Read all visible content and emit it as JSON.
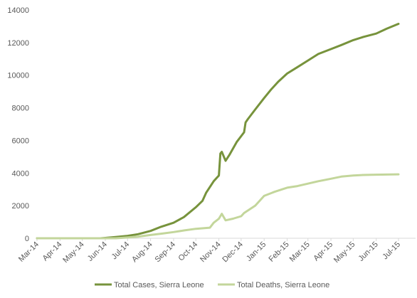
{
  "chart_data": {
    "type": "line",
    "title": "",
    "xlabel": "",
    "ylabel": "",
    "x_ticks": [
      "Mar-14",
      "Apr-14",
      "May-14",
      "Jun-14",
      "Jul-14",
      "Aug-14",
      "Sep-14",
      "Oct-14",
      "Nov-14",
      "Dec-14",
      "Jan-15",
      "Feb-15",
      "Mar-15",
      "Apr-15",
      "May-15",
      "Jun-15",
      "Jul-15"
    ],
    "y_ticks": [
      0,
      2000,
      4000,
      6000,
      8000,
      10000,
      12000,
      14000
    ],
    "ylim": [
      0,
      14000
    ],
    "xlim": [
      "2014-03-01",
      "2015-07-01"
    ],
    "grid": false,
    "legend_position": "bottom",
    "series": [
      {
        "name": "Total Cases, Sierra Leone",
        "color": "#77933c",
        "points": [
          [
            "2014-03-01",
            0
          ],
          [
            "2014-05-25",
            0
          ],
          [
            "2014-06-01",
            20
          ],
          [
            "2014-06-15",
            80
          ],
          [
            "2014-07-01",
            150
          ],
          [
            "2014-07-15",
            250
          ],
          [
            "2014-08-01",
            450
          ],
          [
            "2014-08-15",
            700
          ],
          [
            "2014-09-01",
            950
          ],
          [
            "2014-09-15",
            1300
          ],
          [
            "2014-10-01",
            1900
          ],
          [
            "2014-10-10",
            2300
          ],
          [
            "2014-10-15",
            2800
          ],
          [
            "2014-10-25",
            3500
          ],
          [
            "2014-11-01",
            3850
          ],
          [
            "2014-11-03",
            5200
          ],
          [
            "2014-11-05",
            5300
          ],
          [
            "2014-11-10",
            4750
          ],
          [
            "2014-11-15",
            5100
          ],
          [
            "2014-11-25",
            5900
          ],
          [
            "2014-12-05",
            6500
          ],
          [
            "2014-12-07",
            7100
          ],
          [
            "2014-12-10",
            7300
          ],
          [
            "2014-12-20",
            7900
          ],
          [
            "2015-01-01",
            8600
          ],
          [
            "2015-01-10",
            9100
          ],
          [
            "2015-01-20",
            9600
          ],
          [
            "2015-02-01",
            10100
          ],
          [
            "2015-02-15",
            10500
          ],
          [
            "2015-03-01",
            10900
          ],
          [
            "2015-03-15",
            11300
          ],
          [
            "2015-04-01",
            11600
          ],
          [
            "2015-04-15",
            11850
          ],
          [
            "2015-05-01",
            12150
          ],
          [
            "2015-05-15",
            12350
          ],
          [
            "2015-06-01",
            12550
          ],
          [
            "2015-06-15",
            12850
          ],
          [
            "2015-07-01",
            13150
          ]
        ]
      },
      {
        "name": "Total Deaths, Sierra Leone",
        "color": "#c3d69b",
        "points": [
          [
            "2014-03-01",
            0
          ],
          [
            "2014-06-15",
            0
          ],
          [
            "2014-07-01",
            50
          ],
          [
            "2014-07-15",
            100
          ],
          [
            "2014-08-01",
            200
          ],
          [
            "2014-08-15",
            280
          ],
          [
            "2014-09-01",
            380
          ],
          [
            "2014-09-15",
            480
          ],
          [
            "2014-10-01",
            580
          ],
          [
            "2014-10-20",
            650
          ],
          [
            "2014-10-25",
            950
          ],
          [
            "2014-11-01",
            1200
          ],
          [
            "2014-11-05",
            1500
          ],
          [
            "2014-11-10",
            1100
          ],
          [
            "2014-11-20",
            1200
          ],
          [
            "2014-12-01",
            1350
          ],
          [
            "2014-12-05",
            1550
          ],
          [
            "2014-12-20",
            2000
          ],
          [
            "2015-01-01",
            2600
          ],
          [
            "2015-01-15",
            2850
          ],
          [
            "2015-02-01",
            3100
          ],
          [
            "2015-02-15",
            3200
          ],
          [
            "2015-03-01",
            3350
          ],
          [
            "2015-03-15",
            3500
          ],
          [
            "2015-04-01",
            3650
          ],
          [
            "2015-04-15",
            3780
          ],
          [
            "2015-05-01",
            3850
          ],
          [
            "2015-05-15",
            3880
          ],
          [
            "2015-06-01",
            3900
          ],
          [
            "2015-07-01",
            3920
          ]
        ]
      }
    ]
  }
}
